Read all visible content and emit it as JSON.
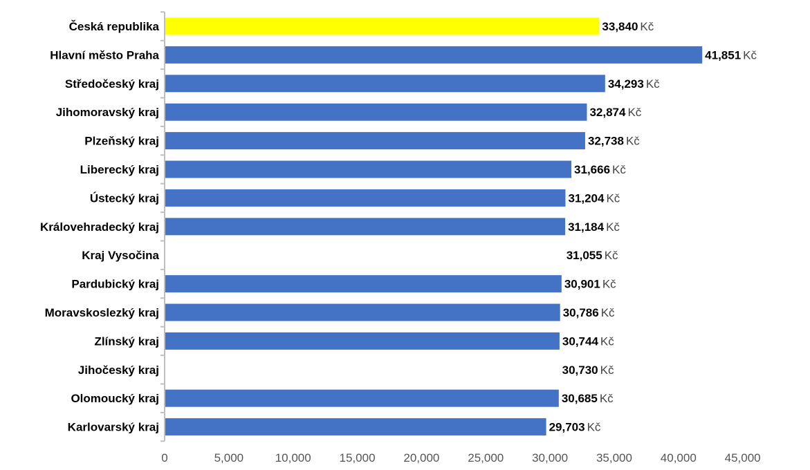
{
  "chart_data": {
    "type": "bar",
    "orientation": "horizontal",
    "categories": [
      "Česká republika",
      "Hlavní město Praha",
      "Středočeský kraj",
      "Jihomoravský kraj",
      "Plzeňský kraj",
      "Liberecký kraj",
      "Ústecký kraj",
      "Královehradecký kraj",
      "Kraj Vysočina",
      "Pardubický kraj",
      "Moravskoslezký kraj",
      "Zlínský kraj",
      "Jihočeský kraj",
      "Olomoucký kraj",
      "Karlovarský kraj"
    ],
    "values": [
      33840,
      41851,
      34293,
      32874,
      32738,
      31666,
      31204,
      31184,
      31055,
      30901,
      30786,
      30744,
      30730,
      30685,
      29703
    ],
    "value_labels": [
      "33,840",
      "41,851",
      "34,293",
      "32,874",
      "32,738",
      "31,666",
      "31,204",
      "31,184",
      "31,055",
      "30,901",
      "30,786",
      "30,744",
      "30,730",
      "30,685",
      "29,703"
    ],
    "value_unit": "Kč",
    "bar_visible": [
      true,
      true,
      true,
      true,
      true,
      true,
      true,
      true,
      false,
      true,
      true,
      true,
      false,
      true,
      true
    ],
    "colors": {
      "default": "#4472C4",
      "highlight": "#FFFF00",
      "highlight_index": 0
    },
    "xlim": [
      0,
      45000
    ],
    "x_ticks": [
      0,
      5000,
      10000,
      15000,
      20000,
      25000,
      30000,
      35000,
      40000,
      45000
    ],
    "x_tick_labels": [
      "0",
      "5,000",
      "10,000",
      "15,000",
      "20,000",
      "25,000",
      "30,000",
      "35,000",
      "40,000",
      "45,000"
    ],
    "grid": false,
    "legend": "none",
    "title": "",
    "xlabel": "",
    "ylabel": ""
  }
}
